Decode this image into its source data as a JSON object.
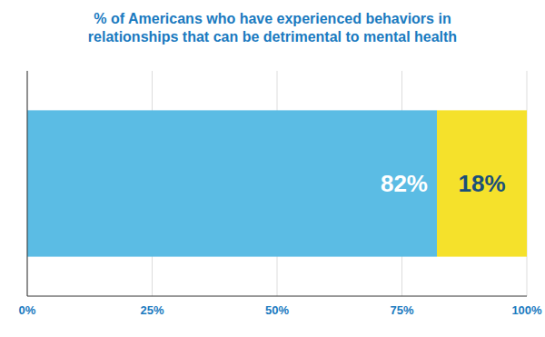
{
  "chart_data": {
    "type": "bar",
    "orientation": "horizontal",
    "stacked": true,
    "title": "% of Americans who have experienced behaviors in\nrelationships that can be detrimental to mental health",
    "categories": [
      null
    ],
    "series": [
      {
        "values": [
          82
        ],
        "color": "#5bbce4",
        "value_labels": [
          "82%"
        ]
      },
      {
        "values": [
          18
        ],
        "color": "#f5e12b",
        "value_labels": [
          "18%"
        ]
      }
    ],
    "xlim": [
      0,
      100
    ],
    "xticks": [
      {
        "value": 0,
        "label": "0%"
      },
      {
        "value": 25,
        "label": "25%"
      },
      {
        "value": 50,
        "label": "50%"
      },
      {
        "value": 75,
        "label": "75%"
      },
      {
        "value": 100,
        "label": "100%"
      }
    ],
    "grid": true,
    "data_labels": true,
    "tick_labels": "x"
  }
}
